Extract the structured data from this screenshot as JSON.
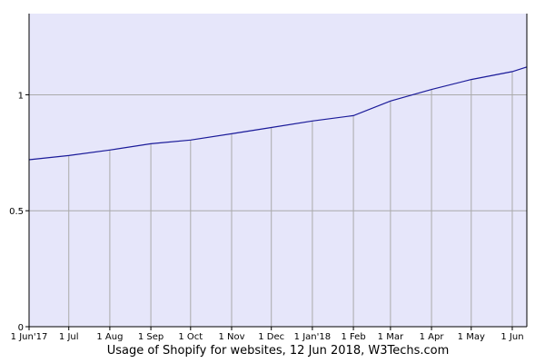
{
  "chart_data": {
    "type": "line",
    "x_label": "Usage of Shopify for websites, 12 Jun 2018, W3Techs.com",
    "x": [
      "2017-06-01",
      "2017-07-01",
      "2017-08-01",
      "2017-09-01",
      "2017-10-01",
      "2017-11-01",
      "2017-12-01",
      "2018-01-01",
      "2018-02-01",
      "2018-03-01",
      "2018-04-01",
      "2018-05-01",
      "2018-06-01",
      "2018-06-12"
    ],
    "series": [
      {
        "name": "Shopify",
        "color": "#1a1a99",
        "values": [
          0.72,
          0.738,
          0.762,
          0.789,
          0.805,
          0.832,
          0.859,
          0.887,
          0.91,
          0.973,
          1.023,
          1.066,
          1.1,
          1.12
        ]
      }
    ],
    "xlim": [
      "2017-06-01",
      "2018-06-12"
    ],
    "xticks": [
      {
        "value": "2017-06-01",
        "label": "1 Jun'17"
      },
      {
        "value": "2017-07-01",
        "label": "1 Jul"
      },
      {
        "value": "2017-08-01",
        "label": "1 Aug"
      },
      {
        "value": "2017-09-01",
        "label": "1 Sep"
      },
      {
        "value": "2017-10-01",
        "label": "1 Oct"
      },
      {
        "value": "2017-11-01",
        "label": "1 Nov"
      },
      {
        "value": "2017-12-01",
        "label": "1 Dec"
      },
      {
        "value": "2018-01-01",
        "label": "1 Jan'18"
      },
      {
        "value": "2018-02-01",
        "label": "1 Feb"
      },
      {
        "value": "2018-03-01",
        "label": "1 Mar"
      },
      {
        "value": "2018-04-01",
        "label": "1 Apr"
      },
      {
        "value": "2018-05-01",
        "label": "1 May"
      },
      {
        "value": "2018-06-01",
        "label": "1 Jun"
      }
    ],
    "ylim": [
      0,
      1.35
    ],
    "yticks": [
      0,
      0.5,
      1
    ],
    "grid": true,
    "background": "#e6e6fa"
  }
}
